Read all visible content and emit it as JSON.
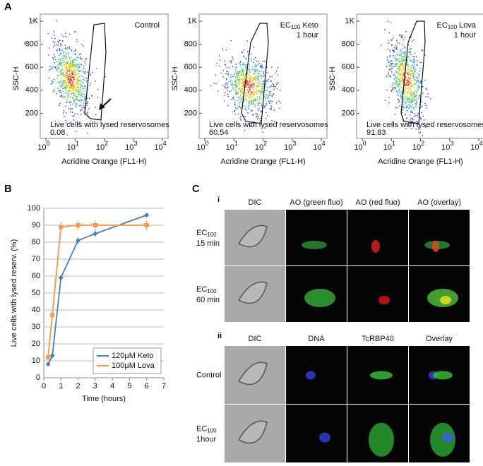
{
  "panel_a": {
    "label": "A",
    "x_label": "Acridine Orange (FL1-H)",
    "y_label": "SSC-H",
    "gate_label": "Live cells with lysed reservosomes",
    "xlim": [
      1,
      10000
    ],
    "ylim": [
      0,
      1000
    ],
    "xticks": [
      {
        "value": 1,
        "label": "10",
        "exponent": "0"
      },
      {
        "value": 10,
        "label": "10",
        "exponent": "1"
      },
      {
        "value": 100,
        "label": "10",
        "exponent": "2"
      },
      {
        "value": 1000,
        "label": "10",
        "exponent": "3"
      },
      {
        "value": 10000,
        "label": "10",
        "exponent": "4"
      }
    ],
    "yticks": [
      200,
      400,
      600,
      800,
      {
        "value": 1000,
        "label": "1K"
      }
    ],
    "plots": [
      {
        "title": "Control",
        "percent": 0.08
      },
      {
        "title": "EC",
        "title_sub": "100",
        "title_rest": "Keto",
        "title_line2": "1 hour",
        "percent": 60.54
      },
      {
        "title": "EC",
        "title_sub": "100",
        "title_rest": "Lova",
        "title_line2": "1 hour",
        "percent": 91.83
      }
    ]
  },
  "chart_data": {
    "type": "line",
    "label": "B",
    "x_label": "Time (hours)",
    "y_label": "Live cells with lysed reserv. (%)",
    "x": [
      0.25,
      0.5,
      1,
      2,
      3,
      6
    ],
    "xlim": [
      0,
      7
    ],
    "xticks": [
      0,
      1,
      2,
      3,
      4,
      5,
      6,
      7
    ],
    "ylim": [
      0,
      100
    ],
    "yticks": [
      0,
      10,
      20,
      30,
      40,
      50,
      60,
      70,
      80,
      90,
      100
    ],
    "grid": true,
    "legend": "lower right",
    "series": [
      {
        "name": "120µM Keto",
        "color": "#4a7ebb",
        "values": [
          8,
          13,
          59,
          81,
          85,
          96
        ],
        "errors": [
          1,
          1,
          1,
          2,
          2,
          1
        ]
      },
      {
        "name": "100µM Lova",
        "color": "#f79646",
        "values": [
          12,
          37,
          89,
          90,
          90,
          90
        ],
        "errors": [
          1,
          1,
          3,
          3,
          3,
          3
        ]
      }
    ]
  },
  "panel_c": {
    "label": "C",
    "sections": [
      {
        "label": "i",
        "columns": [
          "DIC",
          "AO (green fluo)",
          "AO (red fluo)",
          "AO (overlay)"
        ],
        "rows": [
          {
            "label": "EC",
            "sub": "100",
            "line2": "15 min"
          },
          {
            "label": "EC",
            "sub": "100",
            "line2": "60 min"
          }
        ]
      },
      {
        "label": "ii",
        "columns": [
          "DIC",
          "DNA",
          "TcRBP40",
          "Overlay"
        ],
        "rows": [
          {
            "label": "Control"
          },
          {
            "label": "EC",
            "sub": "100",
            "line2": "1hour"
          }
        ]
      }
    ]
  }
}
